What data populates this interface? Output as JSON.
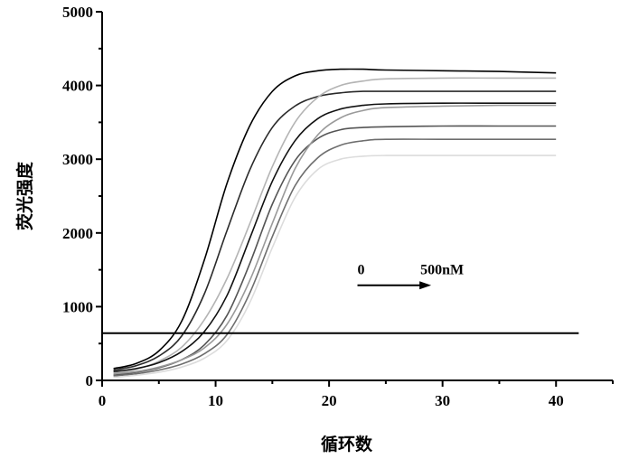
{
  "chart_data": {
    "type": "line",
    "title": "",
    "xlabel": "循环数",
    "ylabel": "荧光强度",
    "xlim": [
      0,
      45
    ],
    "ylim": [
      0,
      5000
    ],
    "x_ticks": [
      0,
      10,
      20,
      30,
      40
    ],
    "x_tick_labels": [
      "0",
      "10",
      "20",
      "30",
      "40"
    ],
    "y_ticks": [
      0,
      1000,
      2000,
      3000,
      4000,
      5000
    ],
    "y_tick_labels": [
      "0",
      "1000",
      "2000",
      "3000",
      "4000",
      "5000"
    ],
    "grid": false,
    "legend": "none",
    "threshold": {
      "y": 640,
      "x_range": [
        0,
        42
      ]
    },
    "annotation": {
      "from_label": "0",
      "to_label": "500nM",
      "arrow_from": [
        22.5,
        1290
      ],
      "arrow_to": [
        29,
        1290
      ]
    },
    "series": [
      {
        "color": "#000000",
        "x": [
          1,
          3,
          5,
          7,
          9,
          11,
          13,
          15,
          17,
          19,
          21,
          23,
          25,
          30,
          35,
          40
        ],
        "values": [
          160,
          230,
          400,
          800,
          1630,
          2670,
          3450,
          3920,
          4130,
          4200,
          4220,
          4220,
          4210,
          4200,
          4190,
          4170
        ]
      },
      {
        "color": "#2a2a2a",
        "x": [
          1,
          3,
          5,
          7,
          9,
          11,
          13,
          15,
          17,
          19,
          21,
          23,
          25,
          30,
          35,
          40
        ],
        "values": [
          140,
          200,
          330,
          600,
          1170,
          2030,
          2850,
          3430,
          3720,
          3850,
          3900,
          3920,
          3920,
          3920,
          3920,
          3920
        ]
      },
      {
        "color": "#b4b4b4",
        "x": [
          1,
          3,
          5,
          7,
          9,
          11,
          13,
          15,
          17,
          19,
          21,
          23,
          25,
          30,
          35,
          40
        ],
        "values": [
          100,
          150,
          260,
          450,
          820,
          1380,
          2120,
          2900,
          3500,
          3840,
          4000,
          4060,
          4090,
          4100,
          4100,
          4100
        ]
      },
      {
        "color": "#111111",
        "x": [
          1,
          3,
          5,
          7,
          9,
          11,
          13,
          15,
          17,
          19,
          21,
          23,
          25,
          30,
          35,
          40
        ],
        "values": [
          120,
          160,
          240,
          390,
          660,
          1150,
          1920,
          2700,
          3250,
          3550,
          3680,
          3730,
          3750,
          3760,
          3760,
          3760
        ]
      },
      {
        "color": "#555555",
        "x": [
          1,
          3,
          5,
          7,
          9,
          11,
          13,
          15,
          17,
          19,
          21,
          23,
          25,
          30,
          35,
          40
        ],
        "values": [
          70,
          110,
          170,
          280,
          480,
          880,
          1580,
          2390,
          2980,
          3280,
          3400,
          3430,
          3440,
          3450,
          3450,
          3450
        ]
      },
      {
        "color": "#9a9a9a",
        "x": [
          1,
          3,
          5,
          7,
          9,
          11,
          13,
          15,
          17,
          19,
          21,
          23,
          25,
          30,
          35,
          40
        ],
        "values": [
          90,
          120,
          180,
          280,
          440,
          760,
          1350,
          2130,
          2870,
          3330,
          3560,
          3660,
          3700,
          3720,
          3730,
          3730
        ]
      },
      {
        "color": "#6e6e6e",
        "x": [
          1,
          3,
          5,
          7,
          9,
          11,
          13,
          15,
          17,
          19,
          21,
          23,
          25,
          30,
          35,
          40
        ],
        "values": [
          60,
          90,
          140,
          220,
          360,
          620,
          1180,
          1950,
          2640,
          3020,
          3190,
          3250,
          3270,
          3270,
          3270,
          3270
        ]
      },
      {
        "color": "#dcdcdc",
        "x": [
          1,
          3,
          5,
          7,
          9,
          11,
          13,
          15,
          17,
          19,
          21,
          23,
          25,
          30,
          35,
          40
        ],
        "values": [
          40,
          70,
          110,
          180,
          300,
          540,
          1050,
          1800,
          2480,
          2860,
          3000,
          3040,
          3050,
          3050,
          3050,
          3050
        ]
      }
    ]
  }
}
